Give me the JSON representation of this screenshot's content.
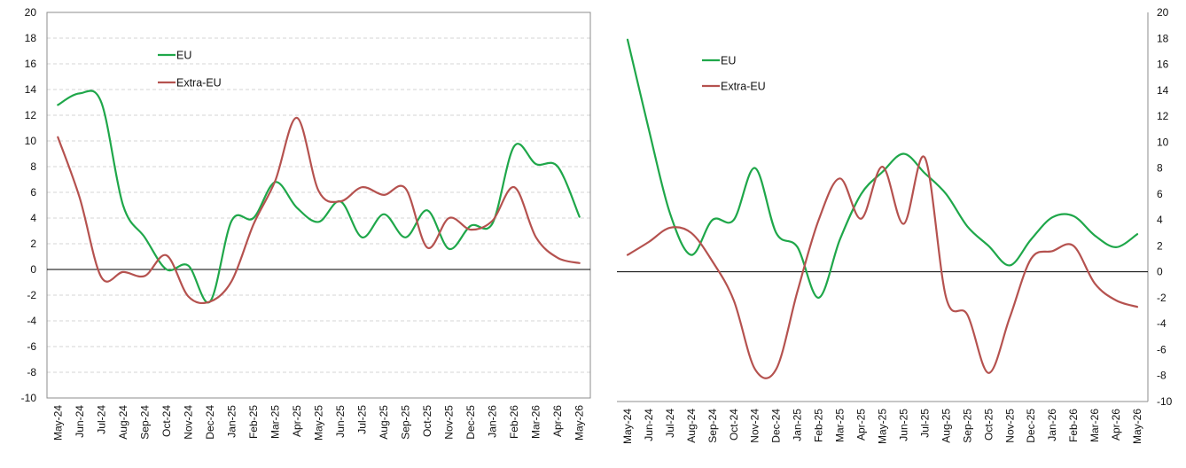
{
  "chart_data": [
    {
      "type": "line",
      "categories": [
        "May-24",
        "Jun-24",
        "Jul-24",
        "Aug-24",
        "Sep-24",
        "Oct-24",
        "Nov-24",
        "Dec-24",
        "Jan-25",
        "Feb-25",
        "Mar-25",
        "Apr-25",
        "May-25",
        "Jun-25",
        "Jul-25",
        "Aug-25",
        "Sep-25",
        "Oct-25",
        "Nov-25",
        "Dec-25",
        "Jan-26",
        "Feb-26",
        "Mar-26",
        "Apr-26",
        "May-26"
      ],
      "series": [
        {
          "name": "EU",
          "color": "#1fa74a",
          "values": [
            12.8,
            13.7,
            13.0,
            5.0,
            2.5,
            0.0,
            0.3,
            -2.5,
            3.8,
            4.0,
            6.8,
            4.8,
            3.7,
            5.3,
            2.5,
            4.3,
            2.5,
            4.6,
            1.6,
            3.4,
            3.6,
            9.6,
            8.2,
            8.0,
            4.1
          ]
        },
        {
          "name": "Extra-EU",
          "color": "#b5524f",
          "values": [
            10.3,
            5.6,
            -0.6,
            -0.2,
            -0.5,
            1.1,
            -2.1,
            -2.5,
            -0.9,
            3.5,
            6.9,
            11.8,
            6.1,
            5.3,
            6.4,
            5.8,
            6.3,
            1.7,
            4.0,
            3.1,
            3.8,
            6.4,
            2.5,
            0.9,
            0.5
          ]
        }
      ],
      "ylim": [
        -10,
        20
      ],
      "y_ticks": [
        20,
        18,
        16,
        14,
        12,
        10,
        8,
        6,
        4,
        2,
        0,
        -2,
        -4,
        -6,
        -8,
        -10
      ],
      "y_axis_side": "left",
      "grid": true,
      "legend_position": "upper-left, inside"
    },
    {
      "type": "line",
      "categories": [
        "May-24",
        "Jun-24",
        "Jul-24",
        "Aug-24",
        "Sep-24",
        "Oct-24",
        "Nov-24",
        "Dec-24",
        "Jan-25",
        "Feb-25",
        "Mar-25",
        "Apr-25",
        "May-25",
        "Jun-25",
        "Jul-25",
        "Aug-25",
        "Sep-25",
        "Oct-25",
        "Nov-25",
        "Dec-25",
        "Jan-26",
        "Feb-26",
        "Mar-26",
        "Apr-26",
        "May-26"
      ],
      "series": [
        {
          "name": "EU",
          "color": "#1fa74a",
          "values": [
            17.9,
            11.0,
            4.5,
            1.3,
            4.0,
            4.0,
            8.0,
            3.0,
            1.9,
            -2.0,
            2.5,
            6.0,
            7.7,
            9.1,
            7.6,
            6.0,
            3.5,
            2.0,
            0.5,
            2.5,
            4.2,
            4.3,
            2.8,
            1.9,
            2.9
          ]
        },
        {
          "name": "Extra-EU",
          "color": "#b5524f",
          "values": [
            1.3,
            2.3,
            3.4,
            3.0,
            0.8,
            -2.2,
            -7.5,
            -7.5,
            -1.5,
            4.0,
            7.2,
            4.1,
            8.1,
            3.7,
            8.8,
            -2.0,
            -3.3,
            -7.8,
            -3.5,
            1.0,
            1.6,
            2.0,
            -0.9,
            -2.2,
            -2.7
          ]
        }
      ],
      "ylim": [
        -10,
        20
      ],
      "y_ticks": [
        20,
        18,
        16,
        14,
        12,
        10,
        8,
        6,
        4,
        2,
        0,
        -2,
        -4,
        -6,
        -8,
        -10
      ],
      "y_axis_side": "right",
      "grid": false,
      "legend_position": "upper-left, inside"
    }
  ]
}
